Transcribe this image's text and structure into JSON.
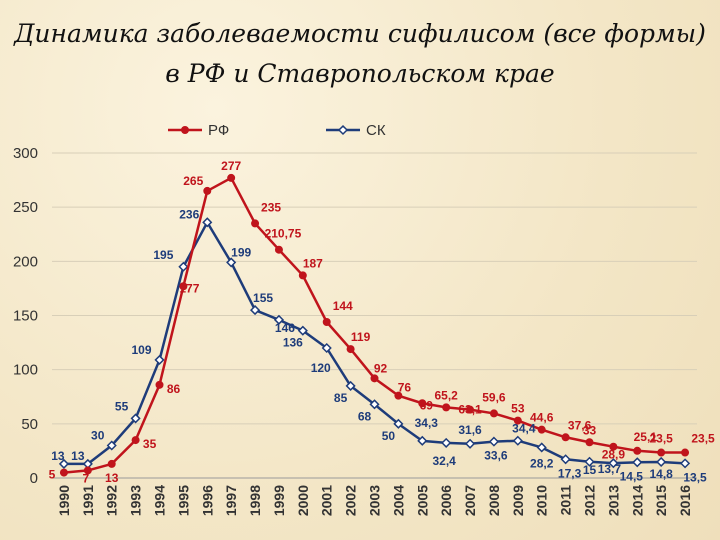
{
  "title": {
    "line1": "Динамика заболеваемости сифилисом (все формы)",
    "line2": "в РФ и Ставропольском крае"
  },
  "chart_data": {
    "type": "line",
    "x": [
      "1990",
      "1991",
      "1992",
      "1993",
      "1994",
      "1995",
      "1996",
      "1997",
      "1998",
      "1999",
      "2000",
      "2001",
      "2002",
      "2003",
      "2004",
      "2005",
      "2006",
      "2007",
      "2008",
      "2009",
      "2010",
      "2011",
      "2012",
      "2013",
      "2014",
      "2015",
      "2016"
    ],
    "ylim": [
      0,
      300
    ],
    "yticks": [
      0,
      50,
      100,
      150,
      200,
      250,
      300
    ],
    "grid": "horizontal",
    "legend_position": "top",
    "series": [
      {
        "name": "РФ",
        "color": "#c0141c",
        "marker": "circle",
        "values": [
          5,
          7,
          13,
          35,
          86,
          177,
          265,
          277,
          235,
          210.75,
          187,
          144,
          119,
          92,
          76,
          69,
          65.2,
          63.1,
          59.6,
          53,
          44.6,
          37.6,
          33,
          28.9,
          25.1,
          23.5,
          23.5
        ],
        "labels": [
          "5",
          "7",
          "13",
          "35",
          "86",
          "177",
          "265",
          "277",
          "235",
          "210,75",
          "187",
          "144",
          "119",
          "92",
          "76",
          "69",
          "65,2",
          "63,1",
          "59,6",
          "53",
          "44,6",
          "37,6",
          "33",
          "28,9",
          "25,1",
          "23,5",
          "23,5"
        ]
      },
      {
        "name": "СК",
        "color": "#1e3c7a",
        "marker": "diamond",
        "values": [
          13,
          13,
          30,
          55,
          109,
          195,
          236,
          199,
          155,
          146,
          136,
          120,
          85,
          68,
          50,
          34.3,
          32.4,
          31.6,
          33.6,
          34.4,
          28.2,
          17.3,
          15,
          13.7,
          14.5,
          14.8,
          13.5
        ],
        "labels": [
          "13",
          "13",
          "30",
          "55",
          "109",
          "195",
          "236",
          "199",
          "155",
          "146",
          "136",
          "120",
          "85",
          "68",
          "50",
          "34,3",
          "32,4",
          "31,6",
          "33,6",
          "34,4",
          "28,2",
          "17,3",
          "15",
          "13,7",
          "14,5",
          "14,8",
          "13,5"
        ]
      }
    ]
  }
}
